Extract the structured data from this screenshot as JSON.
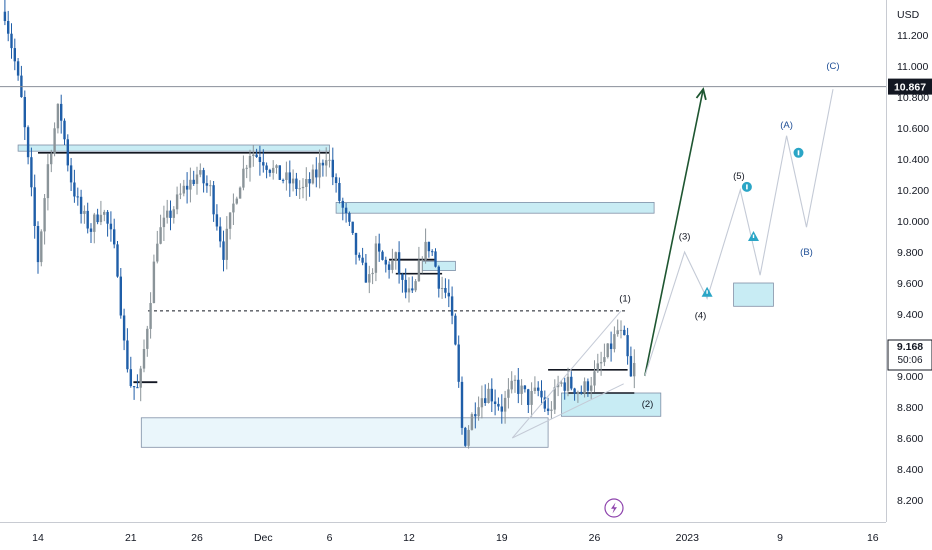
{
  "chart_data": {
    "type": "candlestick",
    "title": "",
    "xlabel": "",
    "ylabel": "",
    "currency_label": "USD",
    "ylim": [
      8.05,
      11.45
    ],
    "y_ticks": [
      "11.200",
      "11.000",
      "10.800",
      "10.600",
      "10.400",
      "10.200",
      "10.000",
      "9.800",
      "9.600",
      "9.400",
      "9.200",
      "9.000",
      "8.800",
      "8.600",
      "8.400",
      "8.200"
    ],
    "x_ticks": [
      {
        "label": "14",
        "t": 0
      },
      {
        "label": "21",
        "t": 7
      },
      {
        "label": "26",
        "t": 12
      },
      {
        "label": "Dec",
        "t": 17
      },
      {
        "label": "6",
        "t": 22
      },
      {
        "label": "12",
        "t": 28
      },
      {
        "label": "19",
        "t": 35
      },
      {
        "label": "26",
        "t": 42
      },
      {
        "label": "2023",
        "t": 49
      },
      {
        "label": "9",
        "t": 56
      },
      {
        "label": "16",
        "t": 63
      }
    ],
    "last_price": {
      "label": "9.168",
      "countdown": "50:06",
      "value": 9.168
    },
    "horizontal_line": {
      "label": "10.867",
      "value": 10.867
    },
    "price_path": [
      {
        "t": -2.5,
        "v": 11.35
      },
      {
        "t": -1.8,
        "v": 11.05
      },
      {
        "t": -1.2,
        "v": 10.75
      },
      {
        "t": -0.6,
        "v": 10.25
      },
      {
        "t": 0,
        "v": 9.75
      },
      {
        "t": 0.8,
        "v": 10.4
      },
      {
        "t": 1.6,
        "v": 10.75
      },
      {
        "t": 2.4,
        "v": 10.3
      },
      {
        "t": 3.2,
        "v": 10.05
      },
      {
        "t": 4,
        "v": 9.95
      },
      {
        "t": 4.8,
        "v": 10.1
      },
      {
        "t": 5.5,
        "v": 9.9
      },
      {
        "t": 6,
        "v": 9.7
      },
      {
        "t": 6.5,
        "v": 9.2
      },
      {
        "t": 7,
        "v": 8.95
      },
      {
        "t": 7.6,
        "v": 8.9
      },
      {
        "t": 8.2,
        "v": 9.3
      },
      {
        "t": 9,
        "v": 9.9
      },
      {
        "t": 10,
        "v": 10.05
      },
      {
        "t": 11,
        "v": 10.2
      },
      {
        "t": 12,
        "v": 10.3
      },
      {
        "t": 13,
        "v": 10.2
      },
      {
        "t": 14,
        "v": 9.8
      },
      {
        "t": 15,
        "v": 10.2
      },
      {
        "t": 16,
        "v": 10.45
      },
      {
        "t": 17,
        "v": 10.4
      },
      {
        "t": 18,
        "v": 10.3
      },
      {
        "t": 19,
        "v": 10.25
      },
      {
        "t": 20,
        "v": 10.2
      },
      {
        "t": 21,
        "v": 10.3
      },
      {
        "t": 21.8,
        "v": 10.45
      },
      {
        "t": 22.5,
        "v": 10.2
      },
      {
        "t": 23.5,
        "v": 9.95
      },
      {
        "t": 24.3,
        "v": 9.7
      },
      {
        "t": 25,
        "v": 9.62
      },
      {
        "t": 25.5,
        "v": 9.8
      },
      {
        "t": 26.3,
        "v": 9.7
      },
      {
        "t": 27,
        "v": 9.75
      },
      {
        "t": 27.6,
        "v": 9.55
      },
      {
        "t": 28.3,
        "v": 9.5
      },
      {
        "t": 29,
        "v": 9.8
      },
      {
        "t": 29.6,
        "v": 9.85
      },
      {
        "t": 30.3,
        "v": 9.6
      },
      {
        "t": 31,
        "v": 9.5
      },
      {
        "t": 31.6,
        "v": 9.1
      },
      {
        "t": 32.1,
        "v": 8.55
      },
      {
        "t": 32.6,
        "v": 8.7
      },
      {
        "t": 33.2,
        "v": 8.85
      },
      {
        "t": 34,
        "v": 8.9
      },
      {
        "t": 35,
        "v": 8.8
      },
      {
        "t": 36,
        "v": 8.95
      },
      {
        "t": 37,
        "v": 8.85
      },
      {
        "t": 37.8,
        "v": 8.9
      },
      {
        "t": 38.5,
        "v": 8.75
      },
      {
        "t": 39.3,
        "v": 8.95
      },
      {
        "t": 40,
        "v": 8.95
      },
      {
        "t": 41,
        "v": 8.9
      },
      {
        "t": 42,
        "v": 9.0
      },
      {
        "t": 43,
        "v": 9.15
      },
      {
        "t": 43.8,
        "v": 9.3
      },
      {
        "t": 44.3,
        "v": 9.2
      },
      {
        "t": 44.8,
        "v": 8.95
      },
      {
        "t": 45.2,
        "v": 9.168
      }
    ],
    "zones": [
      {
        "name": "demand-zone-november-low",
        "t1": 7.8,
        "t2": 38.5,
        "v1": 8.54,
        "v2": 8.73,
        "fill": "#eaf6fb"
      },
      {
        "name": "demand-zone-current",
        "t1": 39.5,
        "t2": 47,
        "v1": 8.74,
        "v2": 8.89,
        "fill": "#c8ecf4"
      },
      {
        "name": "supply-zone-december",
        "t1": 22.5,
        "t2": 46.5,
        "v1": 10.05,
        "v2": 10.12,
        "fill": "#c8ecf4"
      },
      {
        "name": "target-zone-wave-c",
        "t1": 52.5,
        "t2": 55.5,
        "v1": 9.45,
        "v2": 9.6,
        "fill": "#c8ecf4"
      },
      {
        "name": "zone-november-highs",
        "t1": -1.5,
        "t2": 22,
        "v1": 10.45,
        "v2": 10.49,
        "fill": "#c8ecf4"
      },
      {
        "name": "zone-small-mid-december",
        "t1": 29,
        "t2": 31.5,
        "v1": 9.68,
        "v2": 9.74,
        "fill": "#c8ecf4"
      }
    ],
    "levels": [
      {
        "name": "level-dashed-9420",
        "t1": 8.3,
        "t2": 44.5,
        "v": 9.42,
        "style": "dashed"
      },
      {
        "name": "level-november-high",
        "t1": 0,
        "t2": 22,
        "v": 10.44,
        "style": "solid"
      },
      {
        "name": "level-mid-december",
        "t1": 27,
        "t2": 30.5,
        "v": 9.66,
        "style": "solid"
      },
      {
        "name": "level-late-december",
        "t1": 38.5,
        "t2": 44.5,
        "v": 9.04,
        "style": "solid"
      },
      {
        "name": "level-late-december-low",
        "t1": 40,
        "t2": 45,
        "v": 8.89,
        "style": "solid"
      }
    ],
    "projections": [
      {
        "name": "projection-impulse-arrow",
        "color": "#1e5631",
        "points": [
          {
            "t": 45.8,
            "v": 9.0
          },
          {
            "t": 50.2,
            "v": 10.85
          }
        ]
      },
      {
        "name": "projection-wave-path",
        "color": "#c4cad6",
        "points": [
          {
            "t": 45.8,
            "v": 9.0
          },
          {
            "t": 48.8,
            "v": 9.8
          },
          {
            "t": 50.5,
            "v": 9.5
          },
          {
            "t": 53,
            "v": 10.2
          },
          {
            "t": 54.5,
            "v": 9.65
          },
          {
            "t": 56.5,
            "v": 10.55
          },
          {
            "t": 58,
            "v": 9.96
          },
          {
            "t": 60,
            "v": 10.85
          }
        ]
      }
    ],
    "wave_labels": [
      {
        "name": "wave-label-1",
        "text": "(1)",
        "t": 44.3,
        "v": 9.5,
        "color": "#131722"
      },
      {
        "name": "wave-label-2",
        "text": "(2)",
        "t": 46,
        "v": 8.82,
        "color": "#131722"
      },
      {
        "name": "wave-label-3",
        "text": "(3)",
        "t": 48.8,
        "v": 9.9,
        "color": "#131722"
      },
      {
        "name": "wave-label-4",
        "text": "(4)",
        "t": 50,
        "v": 9.39,
        "color": "#131722"
      },
      {
        "name": "wave-label-5",
        "text": "(5)",
        "t": 52.9,
        "v": 10.29,
        "color": "#131722"
      },
      {
        "name": "wave-label-a",
        "text": "(A)",
        "t": 56.5,
        "v": 10.62,
        "color": "#1e4e96"
      },
      {
        "name": "wave-label-b",
        "text": "(B)",
        "t": 58,
        "v": 9.8,
        "color": "#1e4e96"
      },
      {
        "name": "wave-label-c",
        "text": "(C)",
        "t": 60,
        "v": 11.0,
        "color": "#1e4e96"
      }
    ],
    "badges": [
      {
        "name": "info-badge-wave-5",
        "t": 53.5,
        "v": 10.22,
        "shape": "circle"
      },
      {
        "name": "info-badge-wave-a",
        "t": 57.4,
        "v": 10.44,
        "shape": "circle"
      },
      {
        "name": "warning-badge-wave-4",
        "t": 50.5,
        "v": 9.54,
        "shape": "triangle"
      },
      {
        "name": "warning-badge-wave-3-target",
        "t": 54,
        "v": 9.9,
        "shape": "triangle"
      }
    ],
    "colors": {
      "candle_up": "#8a9499",
      "candle_down": "#1f5ea8",
      "zone_stroke": "#7f8fa6",
      "wave_badge": "#2aa5c6",
      "grid": "#ffffff"
    }
  }
}
